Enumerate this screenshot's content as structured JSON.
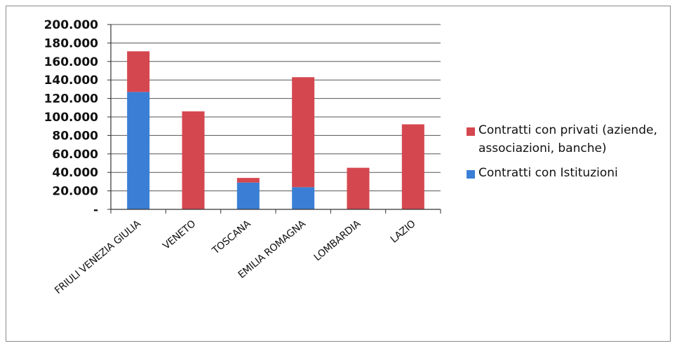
{
  "chart_data": {
    "type": "bar",
    "stacked": true,
    "categories": [
      "FRIULI VENEZIA GIULIA",
      "VENETO",
      "TOSCANA",
      "EMILIA ROMAGNA",
      "LOMBARDIA",
      "LAZIO"
    ],
    "series": [
      {
        "name": "Contratti con Istituzioni",
        "color": "#3a7fd5",
        "values": [
          127000,
          0,
          29000,
          24000,
          0,
          0
        ]
      },
      {
        "name": "Contratti con privati (aziende, associazioni, banche)",
        "color": "#d5474f",
        "values": [
          44000,
          106000,
          5000,
          119000,
          45000,
          92000
        ]
      }
    ],
    "ylim": [
      0,
      200000
    ],
    "yticks": [
      "-",
      "20.000",
      "40.000",
      "60.000",
      "80.000",
      "100.000",
      "120.000",
      "140.000",
      "160.000",
      "180.000",
      "200.000"
    ],
    "ytick_values": [
      0,
      20000,
      40000,
      60000,
      80000,
      100000,
      120000,
      140000,
      160000,
      180000,
      200000
    ],
    "grid": true,
    "legend_position": "right",
    "legend_order": [
      1,
      0
    ]
  }
}
